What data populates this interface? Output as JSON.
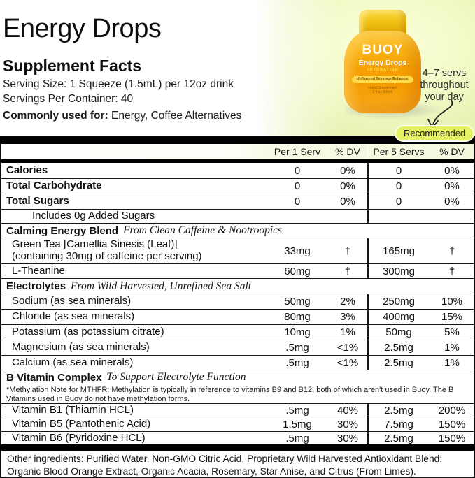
{
  "page": {
    "title": "Energy Drops",
    "supplement_facts_heading": "Supplement Facts",
    "serving_size": "Serving Size: 1 Squeeze (1.5mL) per 12oz drink",
    "servings_per_container": "Servings Per Container: 40",
    "commonly_used_label": "Commonly used for:",
    "commonly_used_value": "Energy, Coffee Alternatives"
  },
  "product_visual": {
    "brand": "BUOY",
    "product_name": "Energy Drops",
    "product_subtitle": "+HYDRATION",
    "label_pill": "Unflavored Beverage Enhancer",
    "label_small_line1": "Liquid Supplement",
    "label_small_line2": "2 fl oz (60ml)",
    "annotation": {
      "line1": "4–7 servs",
      "line2": "throughout",
      "line3": "your day"
    },
    "badge": "Recommended",
    "colors": {
      "panel_green": "#e3f1ac",
      "badge_green": "#e5f163",
      "bottle_orange": "#f59c02",
      "cap_gold": "#e2a906",
      "pill_yellow": "#ffd94a"
    }
  },
  "facts_table": {
    "columns": [
      "Per 1 Serv",
      "% DV",
      "Per 5 Servs",
      "% DV"
    ],
    "rows": [
      {
        "type": "item",
        "bold": true,
        "indent": 0,
        "name": "Calories",
        "v1": "0",
        "dv1": "0%",
        "v5": "0",
        "dv5": "0%"
      },
      {
        "type": "item",
        "bold": true,
        "indent": 0,
        "name": "Total Carbohydrate",
        "v1": "0",
        "dv1": "0%",
        "v5": "0",
        "dv5": "0%"
      },
      {
        "type": "item",
        "bold": true,
        "indent": 0,
        "name": "Total Sugars",
        "v1": "0",
        "dv1": "0%",
        "v5": "0",
        "dv5": "0%"
      },
      {
        "type": "item",
        "bold": false,
        "indent": 2,
        "name": "Includes 0g Added Sugars",
        "v1": "",
        "dv1": "",
        "v5": "",
        "dv5": ""
      },
      {
        "type": "section",
        "name": "Calming Energy Blend",
        "subtitle": "From Clean Caffeine & Nootroopics"
      },
      {
        "type": "item",
        "bold": false,
        "indent": 1,
        "name": "Green Tea [Camellia Sinesis (Leaf)]",
        "name2": "(containing 30mg of caffeine per serving)",
        "v1": "33mg",
        "dv1": "†",
        "v5": "165mg",
        "dv5": "†"
      },
      {
        "type": "item",
        "bold": false,
        "indent": 1,
        "name": "L-Theanine",
        "v1": "60mg",
        "dv1": "†",
        "v5": "300mg",
        "dv5": "†"
      },
      {
        "type": "section",
        "name": "Electrolytes",
        "subtitle": "From Wild Harvested, Unrefined Sea Salt"
      },
      {
        "type": "item",
        "bold": false,
        "indent": 1,
        "name": "Sodium (as sea minerals)",
        "v1": "50mg",
        "dv1": "2%",
        "v5": "250mg",
        "dv5": "10%"
      },
      {
        "type": "item",
        "bold": false,
        "indent": 1,
        "name": "Chloride (as sea minerals)",
        "v1": "80mg",
        "dv1": "3%",
        "v5": "400mg",
        "dv5": "15%"
      },
      {
        "type": "item",
        "bold": false,
        "indent": 1,
        "name": "Potassium (as potassium citrate)",
        "v1": "10mg",
        "dv1": "1%",
        "v5": "50mg",
        "dv5": "5%"
      },
      {
        "type": "item",
        "bold": false,
        "indent": 1,
        "name": "Magnesium (as sea minerals)",
        "v1": ".5mg",
        "dv1": "<1%",
        "v5": "2.5mg",
        "dv5": "1%"
      },
      {
        "type": "item",
        "bold": false,
        "indent": 1,
        "name": "Calcium (as sea minerals)",
        "v1": ".5mg",
        "dv1": "<1%",
        "v5": "2.5mg",
        "dv5": "1%"
      },
      {
        "type": "section",
        "name": "B Vitamin Complex",
        "subtitle": "To Support Electrolyte Function"
      },
      {
        "type": "note",
        "text": "*Methylation Note for MTHFR: Methylation is typically in reference to vitamins B9 and B12, both of which aren't used in Buoy. The B Vitamins used in Buoy do not have methylation forms."
      },
      {
        "type": "item",
        "bold": false,
        "indent": 1,
        "name": "Vitamin B1 (Thiamin HCL)",
        "v1": ".5mg",
        "dv1": "40%",
        "v5": "2.5mg",
        "dv5": "200%"
      },
      {
        "type": "item",
        "bold": false,
        "indent": 1,
        "name": "Vitamin B5 (Pantothenic Acid)",
        "v1": "1.5mg",
        "dv1": "30%",
        "v5": "7.5mg",
        "dv5": "150%"
      },
      {
        "type": "item",
        "bold": false,
        "indent": 1,
        "name": "Vitamin B6 (Pyridoxine HCL)",
        "v1": ".5mg",
        "dv1": "30%",
        "v5": "2.5mg",
        "dv5": "150%"
      }
    ]
  },
  "other_ingredients": "Other ingredients: Purified Water, Non-GMO Citric Acid, Proprietary Wild Harvested Antioxidant Blend: Organic Blood Orange Extract, Organic Acacia, Rosemary, Star Anise, and Citrus (From Limes)."
}
